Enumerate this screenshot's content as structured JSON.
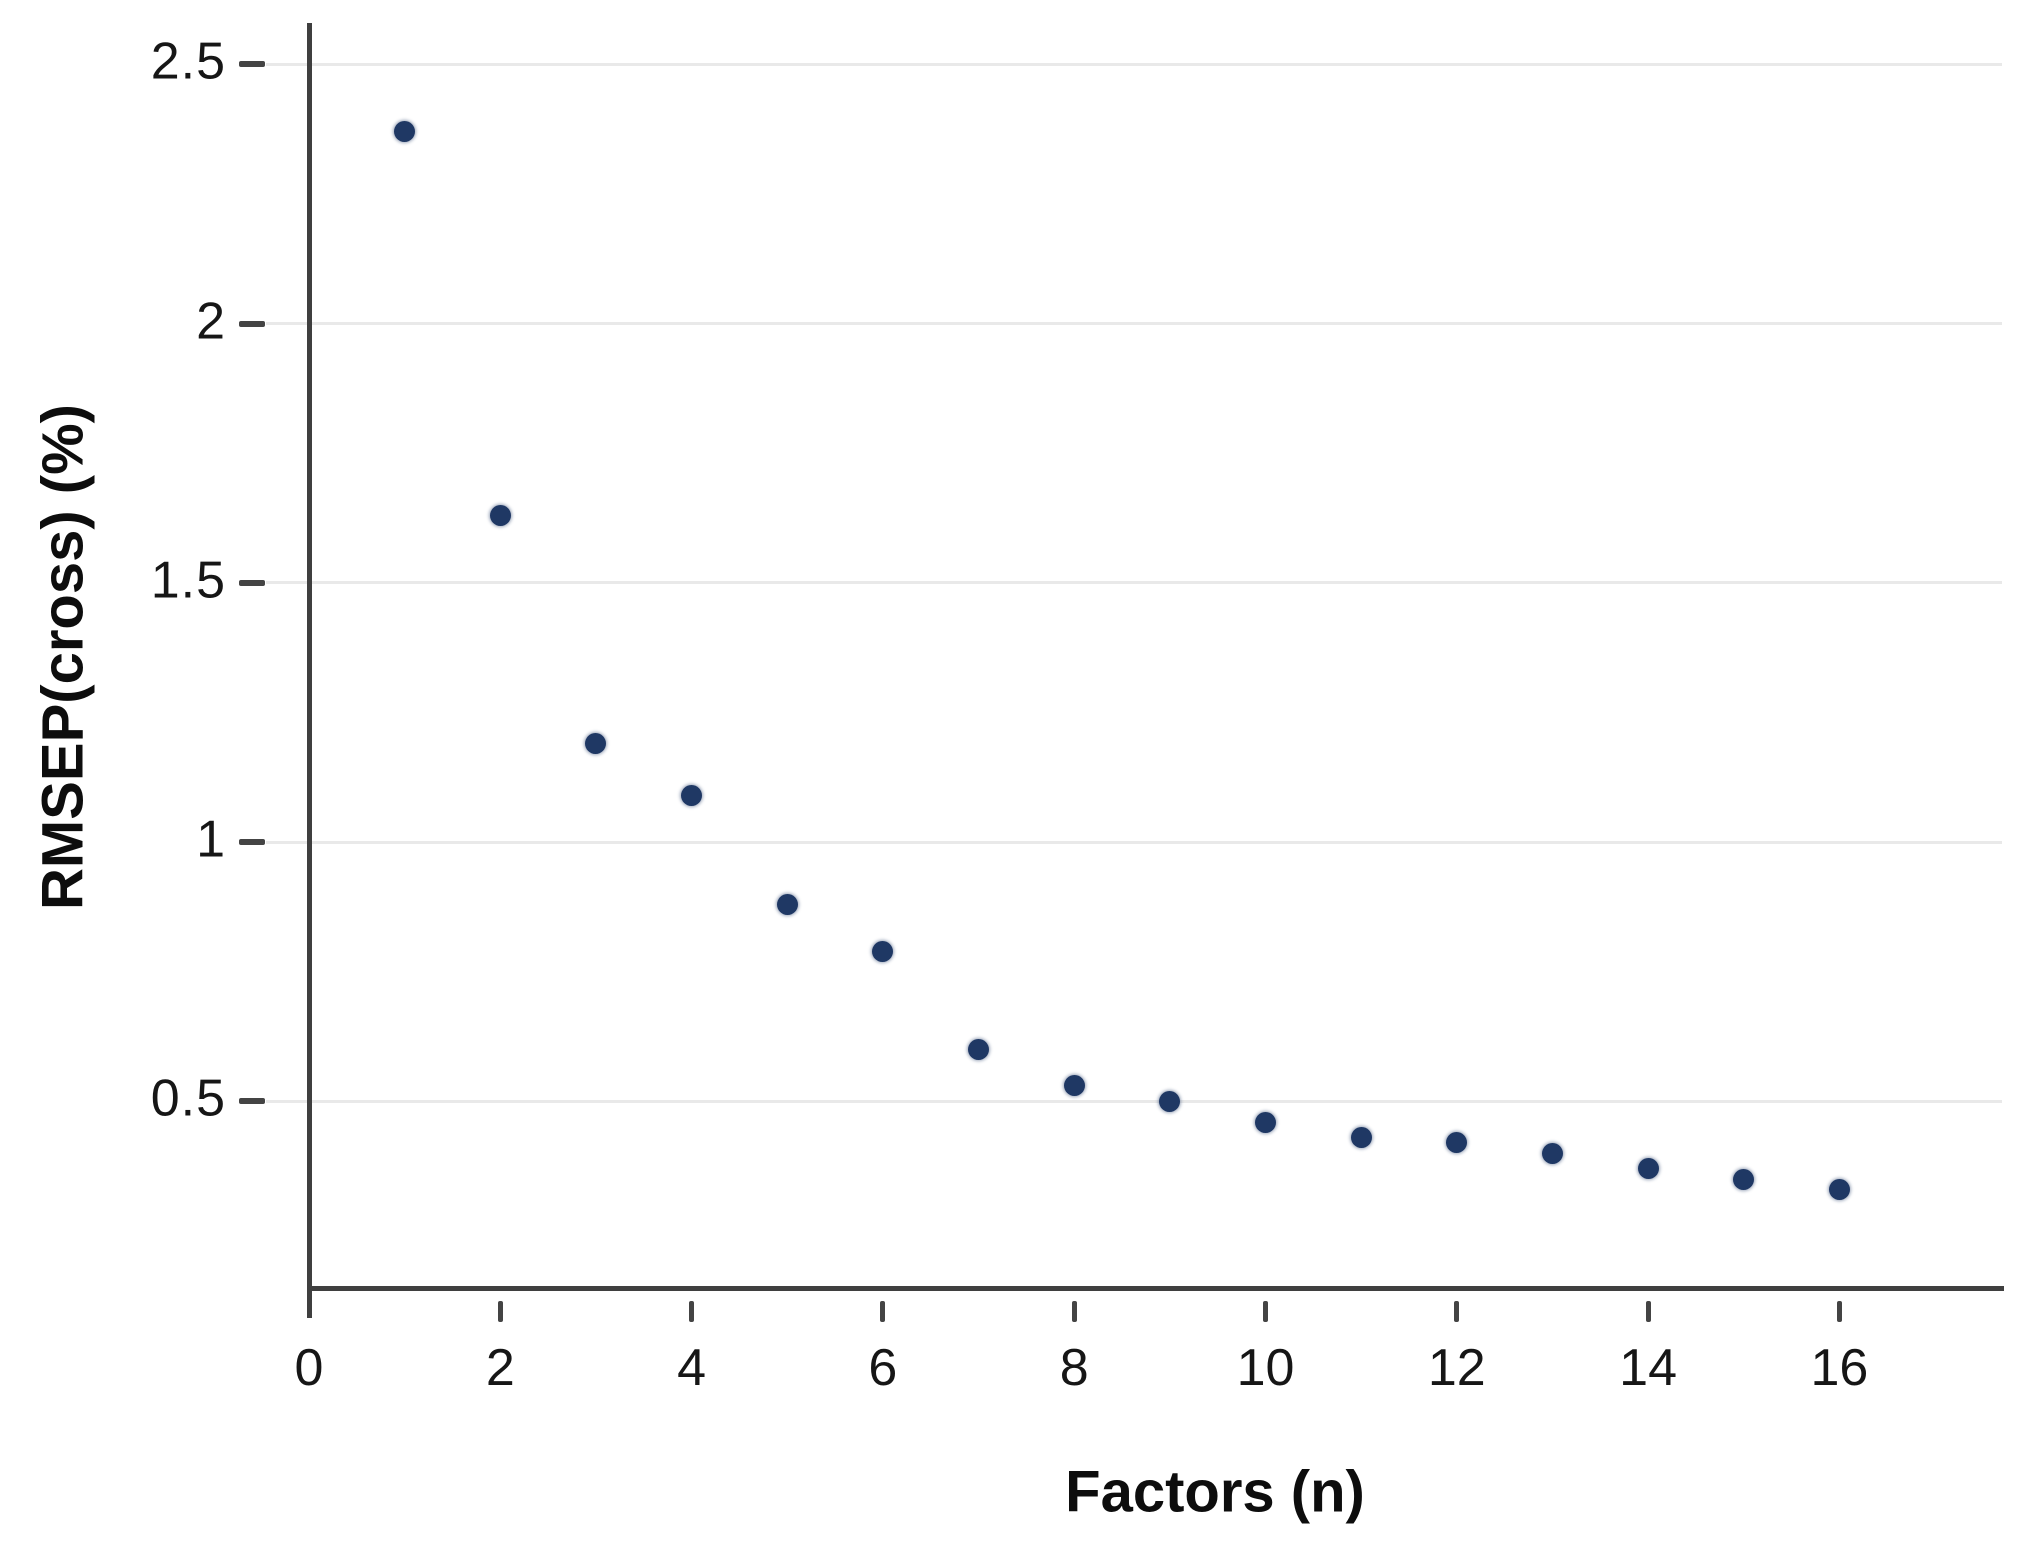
{
  "chart_data": {
    "type": "scatter",
    "title": "",
    "xlabel": "Factors (n)",
    "ylabel": "RMSEP(cross) (%)",
    "x": [
      1,
      2,
      3,
      4,
      5,
      6,
      7,
      8,
      9,
      10,
      11,
      12,
      13,
      14,
      15,
      16
    ],
    "y": [
      2.37,
      1.63,
      1.19,
      1.09,
      0.88,
      0.79,
      0.6,
      0.53,
      0.5,
      0.46,
      0.43,
      0.42,
      0.4,
      0.37,
      0.35,
      0.33
    ],
    "xtick_values": [
      0,
      2,
      4,
      6,
      8,
      10,
      12,
      14,
      16
    ],
    "xtick_labels": [
      "0",
      "2",
      "4",
      "6",
      "8",
      "10",
      "12",
      "14",
      "16"
    ],
    "ytick_values": [
      0.5,
      1,
      1.5,
      2,
      2.5
    ],
    "ytick_labels": [
      "0.5",
      "1",
      "1.5",
      "2",
      "2.5"
    ],
    "xlim": [
      0,
      17.7
    ],
    "ylim": [
      0.14,
      2.58
    ],
    "grid": "horizontal-only",
    "legend": "none",
    "colors": {
      "point": "#1f3864",
      "axis": "#3f3f3f",
      "gridline": "#e9e9e9",
      "tick_text": "#161616",
      "background": "#ffffff"
    }
  }
}
